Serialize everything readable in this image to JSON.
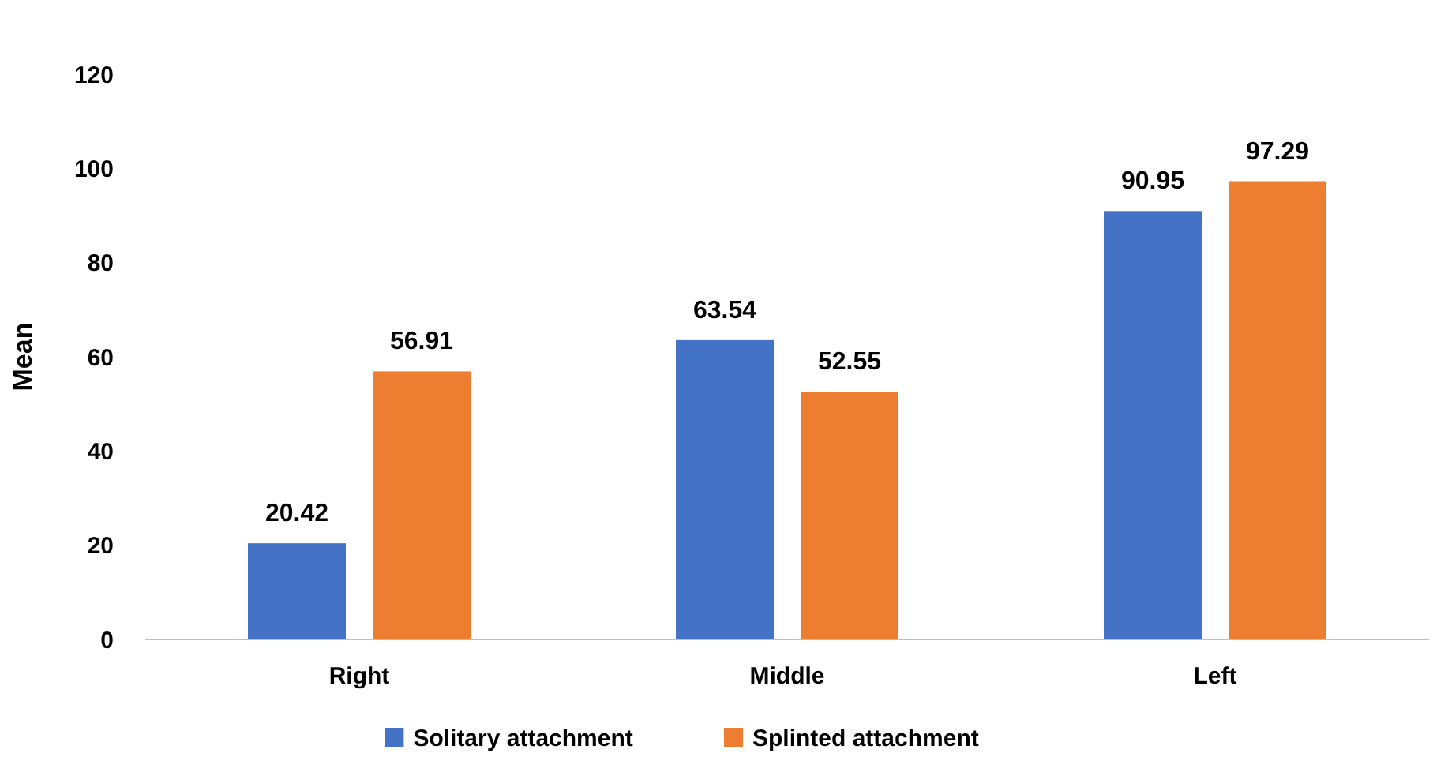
{
  "chart_data": {
    "type": "bar",
    "ylabel": "Mean",
    "categories": [
      "Right",
      "Middle",
      "Left"
    ],
    "series": [
      {
        "name": "Solitary attachment",
        "color": "#4472c4",
        "values": [
          20.42,
          63.54,
          90.95
        ]
      },
      {
        "name": "Splinted attachment",
        "color": "#ed7d31",
        "values": [
          56.91,
          52.55,
          97.29
        ]
      }
    ],
    "ylim": [
      0,
      120
    ],
    "yticks": [
      0,
      20,
      40,
      60,
      80,
      100,
      120
    ],
    "grid": false,
    "legend": "bottom",
    "data_labels": true
  }
}
